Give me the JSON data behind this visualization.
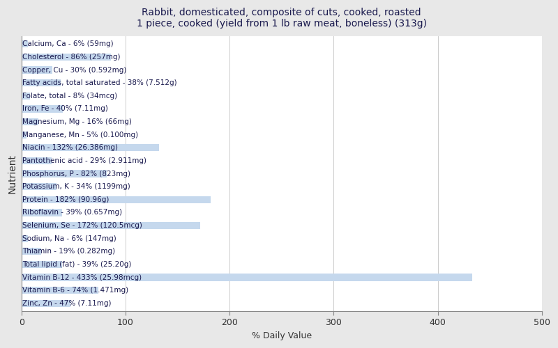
{
  "title": "Rabbit, domesticated, composite of cuts, cooked, roasted\n1 piece, cooked (yield from 1 lb raw meat, boneless) (313g)",
  "xlabel": "% Daily Value",
  "ylabel": "Nutrient",
  "background_color": "#e8e8e8",
  "plot_background_color": "#ffffff",
  "bar_color": "#c5d8ed",
  "text_color": "#1a1a4e",
  "xlim": [
    0,
    500
  ],
  "xticks": [
    0,
    100,
    200,
    300,
    400,
    500
  ],
  "nutrients": [
    {
      "label": "Calcium, Ca - 6% (59mg)",
      "value": 6
    },
    {
      "label": "Cholesterol - 86% (257mg)",
      "value": 86
    },
    {
      "label": "Copper, Cu - 30% (0.592mg)",
      "value": 30
    },
    {
      "label": "Fatty acids, total saturated - 38% (7.512g)",
      "value": 38
    },
    {
      "label": "Folate, total - 8% (34mcg)",
      "value": 8
    },
    {
      "label": "Iron, Fe - 40% (7.11mg)",
      "value": 40
    },
    {
      "label": "Magnesium, Mg - 16% (66mg)",
      "value": 16
    },
    {
      "label": "Manganese, Mn - 5% (0.100mg)",
      "value": 5
    },
    {
      "label": "Niacin - 132% (26.386mg)",
      "value": 132
    },
    {
      "label": "Pantothenic acid - 29% (2.911mg)",
      "value": 29
    },
    {
      "label": "Phosphorus, P - 82% (823mg)",
      "value": 82
    },
    {
      "label": "Potassium, K - 34% (1199mg)",
      "value": 34
    },
    {
      "label": "Protein - 182% (90.96g)",
      "value": 182
    },
    {
      "label": "Riboflavin - 39% (0.657mg)",
      "value": 39
    },
    {
      "label": "Selenium, Se - 172% (120.5mcg)",
      "value": 172
    },
    {
      "label": "Sodium, Na - 6% (147mg)",
      "value": 6
    },
    {
      "label": "Thiamin - 19% (0.282mg)",
      "value": 19
    },
    {
      "label": "Total lipid (fat) - 39% (25.20g)",
      "value": 39
    },
    {
      "label": "Vitamin B-12 - 433% (25.98mcg)",
      "value": 433
    },
    {
      "label": "Vitamin B-6 - 74% (1.471mg)",
      "value": 74
    },
    {
      "label": "Zinc, Zn - 47% (7.11mg)",
      "value": 47
    }
  ]
}
